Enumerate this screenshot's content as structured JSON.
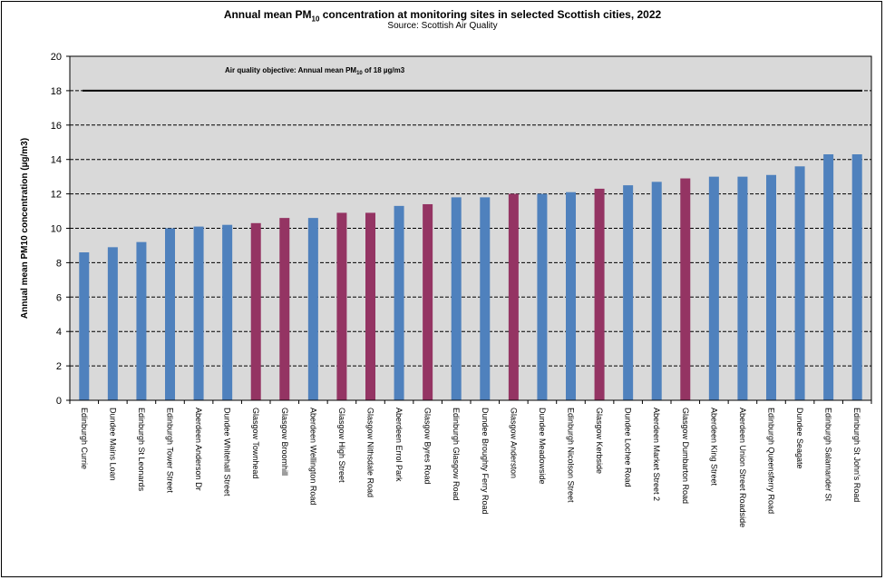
{
  "chart_data": {
    "type": "bar",
    "title_main": "Annual mean PM",
    "title_sub": "10",
    "title_rest": " concentration at monitoring sites in selected Scottish cities, 2022",
    "subtitle": "Source: Scottish Air Quality",
    "ylabel": "Annual mean PM10 concentration (µg/m3)",
    "xlabel": "",
    "ylim": [
      0,
      20
    ],
    "yticks": [
      0,
      2,
      4,
      6,
      8,
      10,
      12,
      14,
      16,
      18,
      20
    ],
    "grid": true,
    "objective": {
      "value": 18,
      "label_pre": "Air quality objective: Annual mean PM",
      "label_sub": "10",
      "label_post": " of 18 µg/m3"
    },
    "colors": {
      "default": "#4f81bd",
      "glasgow": "#943463",
      "plot_bg": "#d9d9d9"
    },
    "categories": [
      "Edinburgh Currie",
      "Dundee Mains Loan",
      "Edinburgh St Leonards",
      "Edinburgh Tower Street",
      "Aberdeen Anderson Dr",
      "Dundee Whitehall Street",
      "Glasgow Townhead",
      "Glasgow Broomhill",
      "Aberdeen Wellington Road",
      "Glasgow High Street",
      "Glasgow Nithsdale Road",
      "Aberdeen Errol Park",
      "Glasgow Byres Road",
      "Edinburgh Glasgow Road",
      "Dundee Broughty Ferry Road",
      "Glasgow Anderston",
      "Dundee Meadowside",
      "Edinburgh Nicolson Street",
      "Glasgow Kerbside",
      "Dundee Lochee Road",
      "Aberdeen Market Street 2",
      "Glasgow Dumbarton Road",
      "Aberdeen King Street",
      "Aberdeen Union Street Roadside",
      "Edinburgh Queensferry Road",
      "Dundee Seagate",
      "Edinburgh Salamander St",
      "Edinburgh St John's Road"
    ],
    "values": [
      8.6,
      8.9,
      9.2,
      10.0,
      10.1,
      10.2,
      10.3,
      10.6,
      10.6,
      10.9,
      10.9,
      11.3,
      11.4,
      11.8,
      11.8,
      12.0,
      12.0,
      12.1,
      12.3,
      12.5,
      12.7,
      12.9,
      13.0,
      13.0,
      13.1,
      13.6,
      14.3,
      14.3
    ],
    "highlight": [
      false,
      false,
      false,
      false,
      false,
      false,
      true,
      true,
      false,
      true,
      true,
      false,
      true,
      false,
      false,
      true,
      false,
      false,
      true,
      false,
      false,
      true,
      false,
      false,
      false,
      false,
      false,
      false
    ]
  }
}
